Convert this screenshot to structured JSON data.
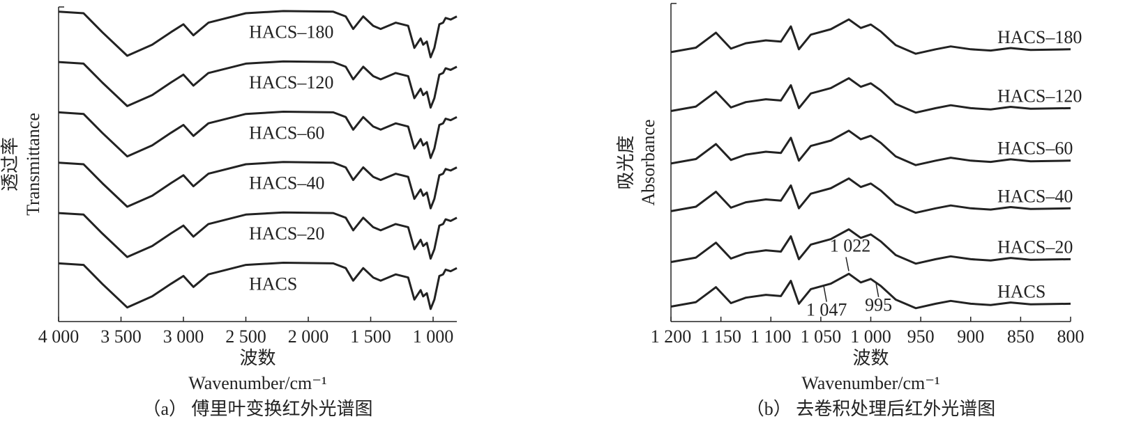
{
  "chart_data": [
    {
      "type": "line",
      "ylabel_cn": "透过率",
      "ylabel": "Transmittance",
      "xlabel_cn": "波数",
      "xlabel": "Wavenumber/cm⁻¹",
      "caption": "（a） 傅里叶变换红外光谱图",
      "xlim": [
        4000,
        810
      ],
      "ylim": [
        0,
        100
      ],
      "xticks": [
        {
          "value": 4000,
          "label": "4 000"
        },
        {
          "value": 3500,
          "label": "3 500"
        },
        {
          "value": 3000,
          "label": "3 000"
        },
        {
          "value": 2500,
          "label": "2 500"
        },
        {
          "value": 2000,
          "label": "2 000"
        },
        {
          "value": 1500,
          "label": "1 500"
        },
        {
          "value": 1000,
          "label": "1 000"
        }
      ],
      "x": [
        4000,
        3800,
        3650,
        3450,
        3250,
        3100,
        3000,
        2920,
        2800,
        2500,
        2200,
        1800,
        1700,
        1640,
        1560,
        1480,
        1420,
        1300,
        1200,
        1150,
        1100,
        1080,
        1050,
        1020,
        990,
        950,
        920,
        900,
        860,
        810
      ],
      "series": [
        {
          "name": "HACS–180",
          "color": "#222222",
          "values": [
            98.5,
            98,
            92,
            84.5,
            88,
            92,
            94.5,
            91,
            95,
            98,
            98.7,
            98.5,
            97,
            93,
            97,
            94,
            93,
            95,
            94,
            87,
            90,
            88,
            89,
            84,
            87,
            94.5,
            95,
            96.5,
            96,
            97
          ]
        },
        {
          "name": "HACS–120",
          "color": "#222222",
          "values": [
            82.5,
            82,
            76,
            68.5,
            72,
            76,
            78.5,
            75,
            79,
            82,
            82.7,
            82.5,
            81,
            77,
            81,
            78,
            77,
            79,
            78,
            71,
            74,
            72,
            73,
            68,
            71,
            78.5,
            79,
            80.5,
            80,
            81
          ]
        },
        {
          "name": "HACS–60",
          "color": "#222222",
          "values": [
            66.5,
            66,
            60,
            52.5,
            56,
            60,
            62.5,
            59,
            63,
            66,
            66.7,
            66.5,
            65,
            61,
            65,
            62,
            61,
            63,
            62,
            55,
            58,
            56,
            57,
            52,
            55,
            62.5,
            63,
            64.5,
            64,
            65
          ]
        },
        {
          "name": "HACS–40",
          "color": "#222222",
          "values": [
            50.5,
            50,
            44,
            36.5,
            40,
            44,
            46.5,
            43,
            47,
            50,
            50.7,
            50.5,
            49,
            45,
            49,
            46,
            45,
            47,
            46,
            39,
            42,
            40,
            41,
            36,
            39,
            46.5,
            47,
            48.5,
            48,
            49
          ]
        },
        {
          "name": "HACS–20",
          "color": "#222222",
          "values": [
            34.5,
            34,
            28,
            20.5,
            24,
            28,
            30.5,
            27,
            31,
            34,
            34.7,
            34.5,
            33,
            29,
            33,
            30,
            29,
            31,
            30,
            23,
            26,
            24,
            25,
            20,
            23,
            30.5,
            31,
            32.5,
            32,
            33
          ]
        },
        {
          "name": "HACS",
          "color": "#222222",
          "values": [
            18.5,
            18,
            12,
            4.5,
            8,
            12,
            14.5,
            11,
            15,
            18,
            18.7,
            18.5,
            17,
            13,
            17,
            14,
            13,
            15,
            14,
            7,
            10,
            8,
            9,
            4,
            7,
            14.5,
            15,
            16.5,
            16,
            17
          ]
        }
      ]
    },
    {
      "type": "line",
      "ylabel_cn": "吸光度",
      "ylabel": "Absorbance",
      "xlabel_cn": "波数",
      "xlabel": "Wavenumber/cm⁻¹",
      "caption": "（b） 去卷积处理后红外光谱图",
      "xlim": [
        1200,
        800
      ],
      "ylim": [
        0,
        100
      ],
      "xticks": [
        {
          "value": 1200,
          "label": "1 200"
        },
        {
          "value": 1150,
          "label": "1 150"
        },
        {
          "value": 1100,
          "label": "1 100"
        },
        {
          "value": 1050,
          "label": "1 050"
        },
        {
          "value": 1000,
          "label": "1 000"
        },
        950,
        900,
        850,
        800
      ],
      "x": [
        1200,
        1175,
        1155,
        1140,
        1125,
        1105,
        1090,
        1080,
        1072,
        1060,
        1040,
        1022,
        1010,
        1000,
        990,
        975,
        955,
        935,
        920,
        900,
        880,
        860,
        840,
        800
      ],
      "series": [
        {
          "name": "HACS–180",
          "color": "#222222",
          "values": [
            84.7,
            86.1,
            90.8,
            85.8,
            87.5,
            88.4,
            88.0,
            92.8,
            85.6,
            90.2,
            91.9,
            95.0,
            92.3,
            93.4,
            91.2,
            86.9,
            84.2,
            85.6,
            86.5,
            85.6,
            85.2,
            86.0,
            85.4,
            85.6
          ]
        },
        {
          "name": "HACS–120",
          "color": "#222222",
          "values": [
            66.2,
            67.6,
            72.3,
            67.3,
            69.0,
            69.9,
            69.5,
            74.3,
            67.1,
            71.7,
            73.4,
            76.5,
            73.8,
            74.9,
            72.7,
            68.4,
            65.7,
            67.1,
            68.0,
            67.1,
            66.7,
            67.5,
            66.9,
            67.1
          ]
        },
        {
          "name": "HACS–60",
          "color": "#222222",
          "values": [
            49.7,
            51.1,
            55.8,
            50.8,
            52.5,
            53.4,
            53.0,
            57.8,
            50.6,
            55.2,
            56.9,
            60.0,
            57.3,
            58.4,
            56.2,
            51.9,
            49.2,
            50.6,
            51.5,
            50.6,
            50.2,
            51.0,
            50.4,
            50.6
          ]
        },
        {
          "name": "HACS–40",
          "color": "#222222",
          "values": [
            34.7,
            36.1,
            40.8,
            35.8,
            37.5,
            38.4,
            38.0,
            42.8,
            35.6,
            40.2,
            41.9,
            45.0,
            42.3,
            43.4,
            41.2,
            36.9,
            34.2,
            35.6,
            36.5,
            35.6,
            35.2,
            36.0,
            35.4,
            35.6
          ]
        },
        {
          "name": "HACS–20",
          "color": "#222222",
          "values": [
            18.7,
            20.1,
            24.8,
            19.8,
            21.5,
            22.4,
            22.0,
            26.8,
            19.6,
            24.2,
            25.9,
            29.0,
            26.3,
            27.4,
            25.2,
            20.9,
            18.2,
            19.6,
            20.5,
            19.6,
            19.2,
            20.0,
            19.4,
            19.6
          ]
        },
        {
          "name": "HACS",
          "color": "#222222",
          "values": [
            4.7,
            6.1,
            10.8,
            5.8,
            7.5,
            8.4,
            8.0,
            12.8,
            5.6,
            10.2,
            11.9,
            15.0,
            12.3,
            13.4,
            11.2,
            6.9,
            4.2,
            5.6,
            6.5,
            5.6,
            5.2,
            6.0,
            5.4,
            5.6
          ]
        }
      ],
      "annotations": [
        {
          "text": "1 022",
          "x": 1022
        },
        {
          "text": "1 047",
          "x": 1047
        },
        {
          "text": "995",
          "x": 995
        }
      ]
    }
  ]
}
